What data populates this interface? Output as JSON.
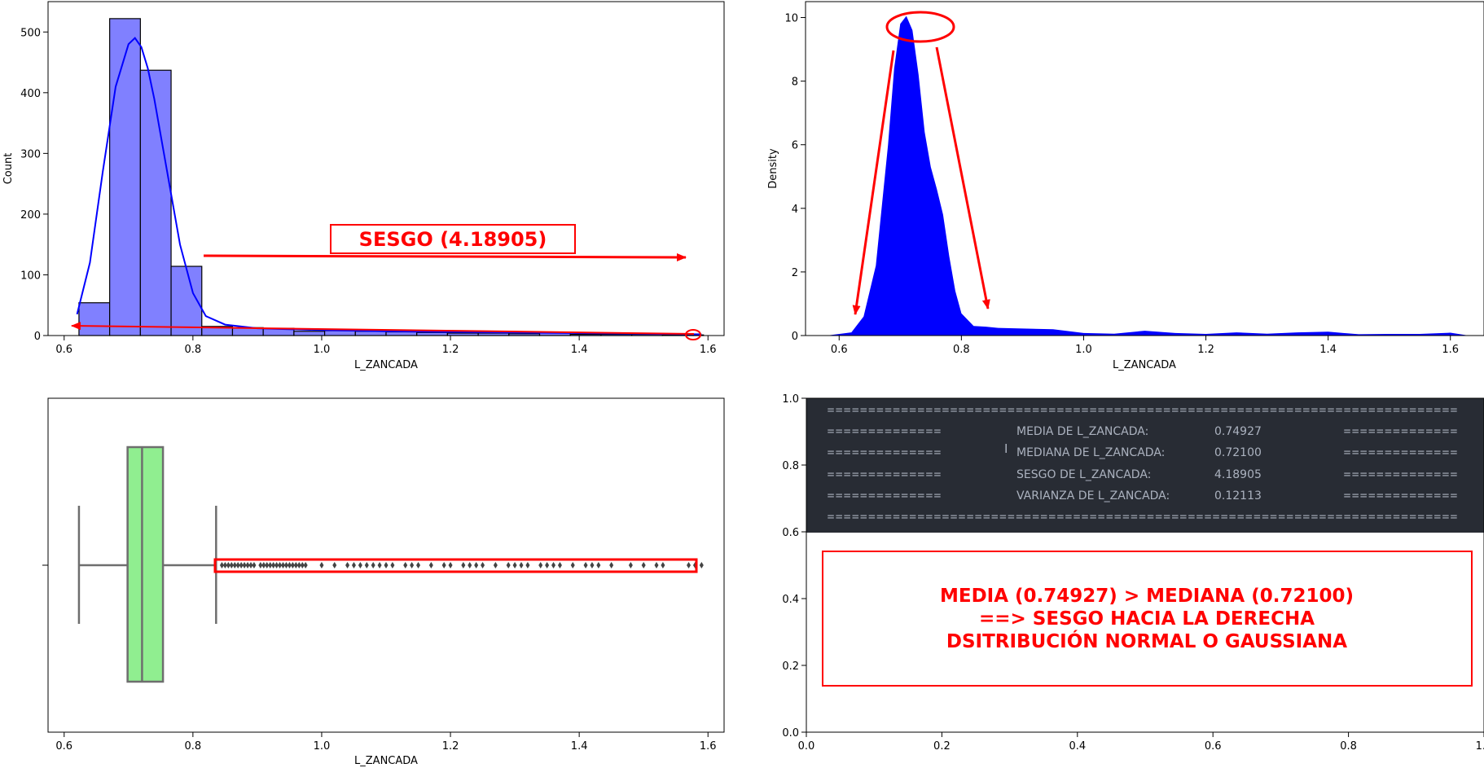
{
  "colors": {
    "hist_fill": "#8080ff",
    "kde_line": "#0000ff",
    "density_fill": "#0000ff",
    "box_fill": "#90ee90",
    "box_edge": "#6e6e6e",
    "annotation": "#ff0000",
    "console_bg": "#282c34",
    "console_text": "#abb2bf"
  },
  "chart_data": [
    {
      "id": "histogram",
      "type": "bar",
      "title": "",
      "xlabel": "L_ZANCADA",
      "ylabel": "Count",
      "xlim": [
        0.575,
        1.625
      ],
      "ylim": [
        0,
        550
      ],
      "xticks": [
        "0.6",
        "0.8",
        "1.0",
        "1.2",
        "1.4",
        "1.6"
      ],
      "yticks": [
        "0",
        "100",
        "200",
        "300",
        "400",
        "500"
      ],
      "bin_edges": [
        0.623,
        0.6707,
        0.7184,
        0.7661,
        0.8138,
        0.8615,
        0.9092,
        0.9569,
        1.0046,
        1.0523,
        1.1,
        1.1477,
        1.1954,
        1.2431,
        1.2908,
        1.3385,
        1.3862,
        1.4339,
        1.4816,
        1.5293,
        1.577,
        1.593
      ],
      "values": [
        54,
        522,
        437,
        114,
        15,
        13,
        12,
        7,
        8,
        7,
        6,
        5,
        4,
        4,
        3,
        5,
        2,
        2,
        2,
        1,
        1
      ],
      "kde": {
        "x": [
          0.62,
          0.64,
          0.66,
          0.68,
          0.7,
          0.71,
          0.72,
          0.73,
          0.74,
          0.76,
          0.78,
          0.8,
          0.82,
          0.85,
          0.9,
          1.0,
          1.1,
          1.2,
          1.3,
          1.4,
          1.5,
          1.59
        ],
        "y": [
          35,
          120,
          270,
          410,
          480,
          490,
          475,
          440,
          390,
          270,
          150,
          70,
          32,
          18,
          12,
          9,
          7,
          6,
          5,
          4,
          3,
          2
        ]
      },
      "annotation": {
        "label": "SESGO (4.18905)"
      }
    },
    {
      "id": "density",
      "type": "area",
      "title": "",
      "xlabel": "L_ZANCADA",
      "ylabel": "Density",
      "xlim": [
        0.545,
        1.655
      ],
      "ylim": [
        0,
        10.5
      ],
      "xticks": [
        "0.6",
        "0.8",
        "1.0",
        "1.2",
        "1.4",
        "1.6"
      ],
      "yticks": [
        "0",
        "2",
        "4",
        "6",
        "8",
        "10"
      ],
      "x": [
        0.58,
        0.62,
        0.64,
        0.66,
        0.68,
        0.69,
        0.7,
        0.71,
        0.72,
        0.73,
        0.74,
        0.75,
        0.76,
        0.77,
        0.78,
        0.79,
        0.8,
        0.82,
        0.84,
        0.86,
        0.9,
        0.95,
        1.0,
        1.05,
        1.1,
        1.15,
        1.2,
        1.25,
        1.3,
        1.35,
        1.4,
        1.45,
        1.5,
        1.55,
        1.6,
        1.63
      ],
      "y": [
        0.0,
        0.1,
        0.6,
        2.2,
        6.0,
        8.4,
        9.8,
        10.05,
        9.6,
        8.2,
        6.4,
        5.3,
        4.6,
        3.8,
        2.5,
        1.4,
        0.7,
        0.3,
        0.28,
        0.24,
        0.22,
        0.2,
        0.08,
        0.06,
        0.15,
        0.08,
        0.05,
        0.1,
        0.06,
        0.1,
        0.12,
        0.04,
        0.05,
        0.05,
        0.09,
        0.0
      ]
    },
    {
      "id": "boxplot",
      "type": "box",
      "title": "",
      "xlabel": "L_ZANCADA",
      "ylabel": "",
      "xlim": [
        0.575,
        1.625
      ],
      "xticks": [
        "0.6",
        "0.8",
        "1.0",
        "1.2",
        "1.4",
        "1.6"
      ],
      "whisker_low": 0.623,
      "q1": 0.6985,
      "median": 0.721,
      "q3": 0.7535,
      "whisker_high": 0.836,
      "outliers": [
        0.845,
        0.85,
        0.855,
        0.86,
        0.865,
        0.87,
        0.875,
        0.88,
        0.885,
        0.89,
        0.895,
        0.905,
        0.91,
        0.915,
        0.92,
        0.925,
        0.93,
        0.935,
        0.94,
        0.945,
        0.95,
        0.955,
        0.96,
        0.965,
        0.97,
        0.975,
        1.0,
        1.02,
        1.04,
        1.05,
        1.06,
        1.07,
        1.08,
        1.09,
        1.1,
        1.11,
        1.13,
        1.14,
        1.15,
        1.17,
        1.19,
        1.2,
        1.22,
        1.23,
        1.24,
        1.25,
        1.27,
        1.29,
        1.3,
        1.31,
        1.32,
        1.34,
        1.35,
        1.36,
        1.37,
        1.39,
        1.41,
        1.42,
        1.43,
        1.45,
        1.48,
        1.5,
        1.52,
        1.53,
        1.57,
        1.58,
        1.59
      ]
    },
    {
      "id": "stats_panel",
      "type": "table",
      "title": "",
      "xlim": [
        0,
        1
      ],
      "ylim": [
        0,
        1
      ],
      "xticks": [
        "0.0",
        "0.2",
        "0.4",
        "0.6",
        "0.8",
        "1.0"
      ],
      "yticks": [
        "0.0",
        "0.2",
        "0.4",
        "0.6",
        "0.8",
        "1.0"
      ],
      "console_lines": [
        {
          "left": "=============================================================================",
          "label": "",
          "value": "",
          "right": ""
        },
        {
          "left": "==============",
          "label": "MEDIA DE L_ZANCADA:",
          "value": "0.74927",
          "right": "=============="
        },
        {
          "left": "==============",
          "label": "MEDIANA DE L_ZANCADA:",
          "value": "0.72100",
          "right": "=============="
        },
        {
          "left": "==============",
          "label": "SESGO DE L_ZANCADA:",
          "value": "4.18905",
          "right": "=============="
        },
        {
          "left": "==============",
          "label": "VARIANZA DE L_ZANCADA:",
          "value": "0.12113",
          "right": "=============="
        },
        {
          "left": "=============================================================================",
          "label": "",
          "value": "",
          "right": ""
        }
      ],
      "conclusion": [
        "MEDIA (0.74927) > MEDIANA (0.72100)",
        "==> SESGO HACIA LA DERECHA",
        "DSITRIBUCIÓN NORMAL O GAUSSIANA"
      ]
    }
  ]
}
